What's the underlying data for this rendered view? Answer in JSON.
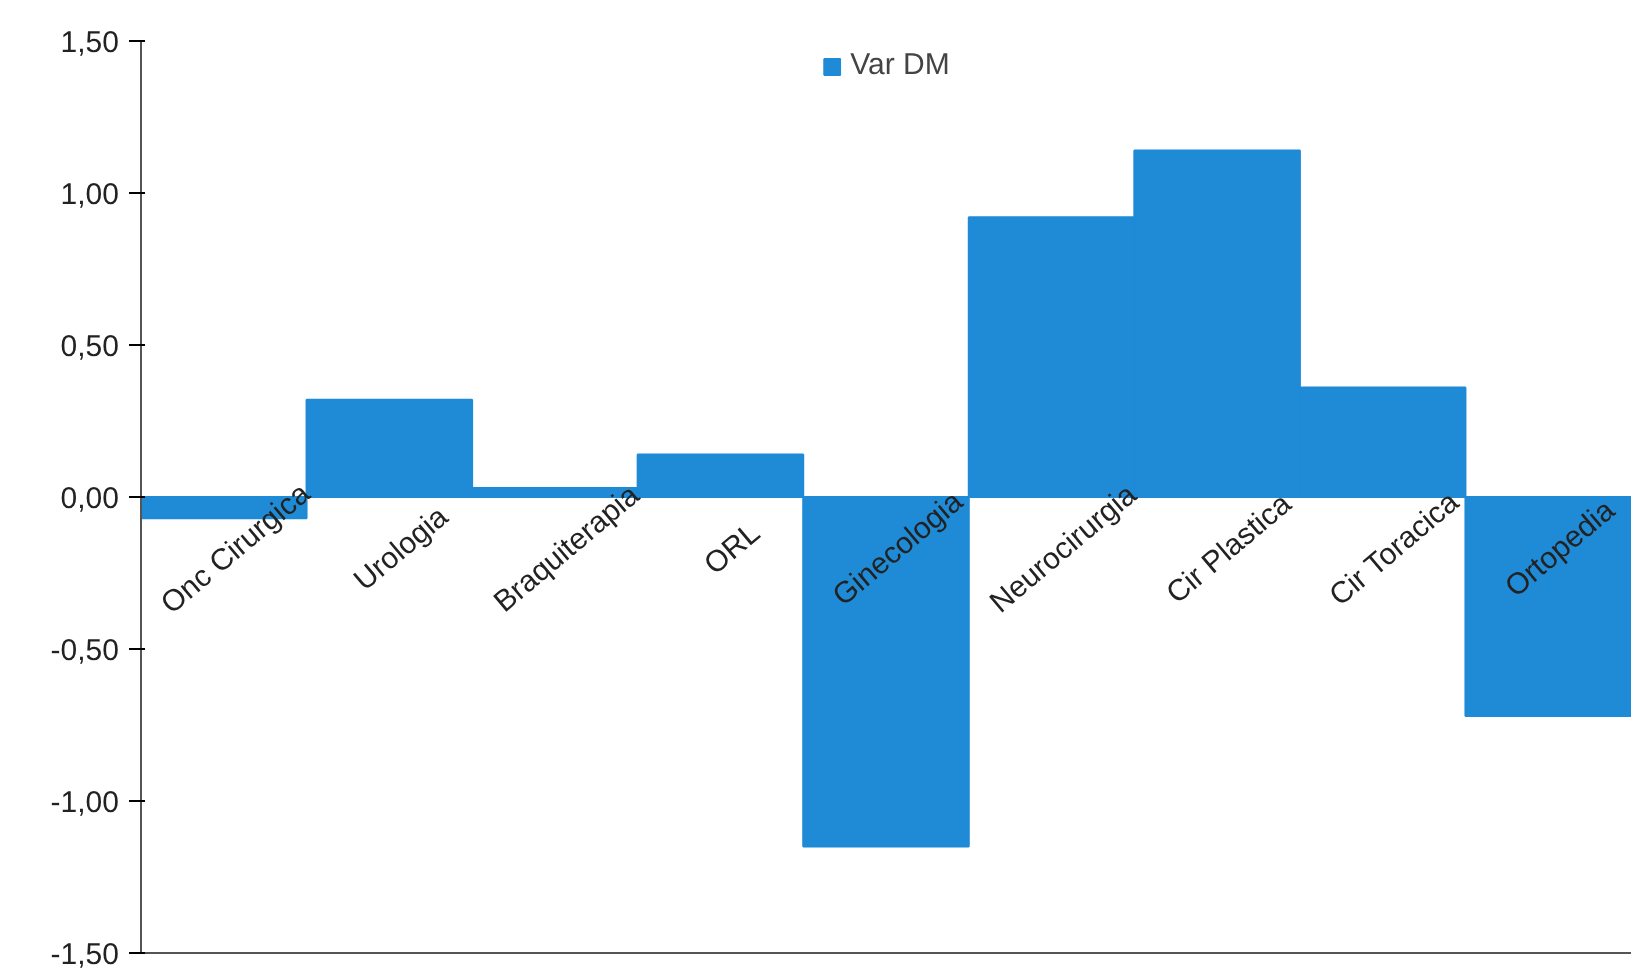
{
  "chart_data": {
    "type": "bar",
    "categories": [
      "Onc Cirurgica",
      "Urologia",
      "Braquiterapia",
      "ORL",
      "Ginecologia",
      "Neurocirurgia",
      "Cir Plastica",
      "Cir Toracica",
      "Ortopedia"
    ],
    "series": [
      {
        "name": "Var DM",
        "color": "#1f8ad6",
        "values": [
          -0.07,
          0.32,
          0.03,
          0.14,
          -1.15,
          0.92,
          1.14,
          0.36,
          -0.72
        ]
      }
    ],
    "ylim": [
      -1.5,
      1.5
    ],
    "yticks": [
      {
        "value": -1.5,
        "label": "-1,50"
      },
      {
        "value": -1.0,
        "label": "-1,00"
      },
      {
        "value": -0.5,
        "label": "-0,50"
      },
      {
        "value": 0,
        "label": "0,00"
      },
      {
        "value": 0.5,
        "label": "0,50"
      },
      {
        "value": 1.0,
        "label": "1,00"
      },
      {
        "value": 1.5,
        "label": "1,50"
      }
    ],
    "grid": false,
    "legend": "top"
  }
}
